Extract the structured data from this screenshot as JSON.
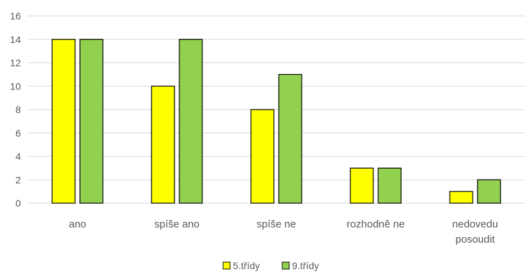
{
  "chart_data": {
    "type": "bar",
    "title": "",
    "xlabel": "",
    "ylabel": "",
    "categories": [
      [
        "ano"
      ],
      [
        "spíše ano"
      ],
      [
        "spíše ne"
      ],
      [
        "rozhodně ne"
      ],
      [
        "nedovedu",
        "posoudit"
      ]
    ],
    "series": [
      {
        "name": "5.třídy",
        "values": [
          14,
          10,
          8,
          3,
          1
        ],
        "color": "#ffff00"
      },
      {
        "name": "9.třídy",
        "values": [
          14,
          14,
          11,
          3,
          2
        ],
        "color": "#92d050"
      }
    ],
    "ylim": [
      0,
      16
    ],
    "yticks": [
      0,
      2,
      4,
      6,
      8,
      10,
      12,
      14,
      16
    ],
    "grid": true,
    "legend_position": "bottom",
    "bar_outline_color": "#000000",
    "grid_color": "#d9d9d9"
  }
}
